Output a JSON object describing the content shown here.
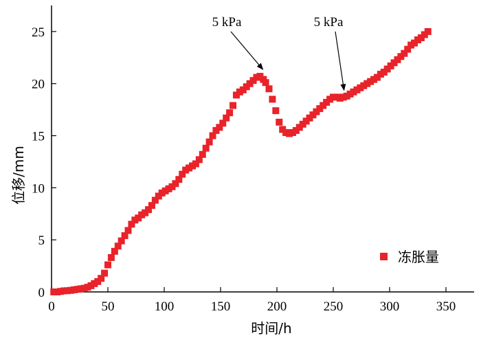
{
  "colors": {
    "series": "#e8232a",
    "axis": "#000000"
  },
  "chart_data": {
    "type": "scatter",
    "xlabel": "时间/h",
    "ylabel": "位移/mm",
    "xlim": [
      0,
      375
    ],
    "ylim": [
      0,
      27.5
    ],
    "xticks": [
      0,
      50,
      100,
      150,
      200,
      250,
      300,
      350
    ],
    "yticks": [
      0,
      5,
      10,
      15,
      20,
      25
    ],
    "legend": {
      "placement": "lower-right",
      "entries": [
        "冻胀量"
      ]
    },
    "grid": false,
    "annotations": [
      {
        "text": "5 kPa",
        "x": 190,
        "y": 20.7
      },
      {
        "text": "5 kPa",
        "x": 262,
        "y": 18.7
      }
    ],
    "series": [
      {
        "name": "冻胀量",
        "marker": "square",
        "x": [
          2,
          5,
          8,
          11,
          14,
          17,
          20,
          23,
          26,
          29,
          32,
          35,
          38,
          41,
          44,
          47,
          50,
          53,
          56,
          59,
          62,
          65,
          68,
          71,
          74,
          77,
          80,
          83,
          86,
          89,
          92,
          95,
          98,
          101,
          104,
          107,
          110,
          113,
          116,
          119,
          122,
          125,
          128,
          131,
          134,
          137,
          140,
          143,
          146,
          149,
          152,
          155,
          158,
          161,
          164,
          167,
          170,
          173,
          176,
          179,
          182,
          185,
          188,
          190,
          193,
          196,
          199,
          202,
          205,
          208,
          211,
          214,
          217,
          220,
          223,
          226,
          229,
          232,
          235,
          238,
          241,
          244,
          247,
          250,
          253,
          256,
          259,
          262,
          265,
          268,
          271,
          274,
          277,
          280,
          283,
          286,
          289,
          292,
          295,
          298,
          301,
          304,
          307,
          310,
          313,
          316,
          319,
          322,
          325,
          328,
          331,
          334
        ],
        "y": [
          0.0,
          0.0,
          0.05,
          0.1,
          0.12,
          0.15,
          0.2,
          0.25,
          0.3,
          0.35,
          0.45,
          0.6,
          0.8,
          1.0,
          1.3,
          1.8,
          2.6,
          3.3,
          3.9,
          4.4,
          4.9,
          5.4,
          5.9,
          6.5,
          6.9,
          7.1,
          7.4,
          7.6,
          7.9,
          8.3,
          8.8,
          9.2,
          9.5,
          9.7,
          9.9,
          10.1,
          10.4,
          10.8,
          11.3,
          11.7,
          11.9,
          12.1,
          12.3,
          12.7,
          13.2,
          13.8,
          14.4,
          15.0,
          15.5,
          15.8,
          16.2,
          16.7,
          17.2,
          17.9,
          18.9,
          19.2,
          19.4,
          19.7,
          20.0,
          20.3,
          20.6,
          20.7,
          20.4,
          20.1,
          19.5,
          18.5,
          17.4,
          16.3,
          15.6,
          15.3,
          15.2,
          15.3,
          15.5,
          15.8,
          16.1,
          16.4,
          16.7,
          17.0,
          17.3,
          17.6,
          17.9,
          18.2,
          18.5,
          18.7,
          18.7,
          18.6,
          18.7,
          18.8,
          19.0,
          19.2,
          19.4,
          19.6,
          19.8,
          20.0,
          20.2,
          20.4,
          20.6,
          20.9,
          21.1,
          21.4,
          21.7,
          22.0,
          22.3,
          22.6,
          22.9,
          23.3,
          23.7,
          23.9,
          24.2,
          24.4,
          24.7,
          25.0
        ],
        "yHand": null
      }
    ]
  }
}
